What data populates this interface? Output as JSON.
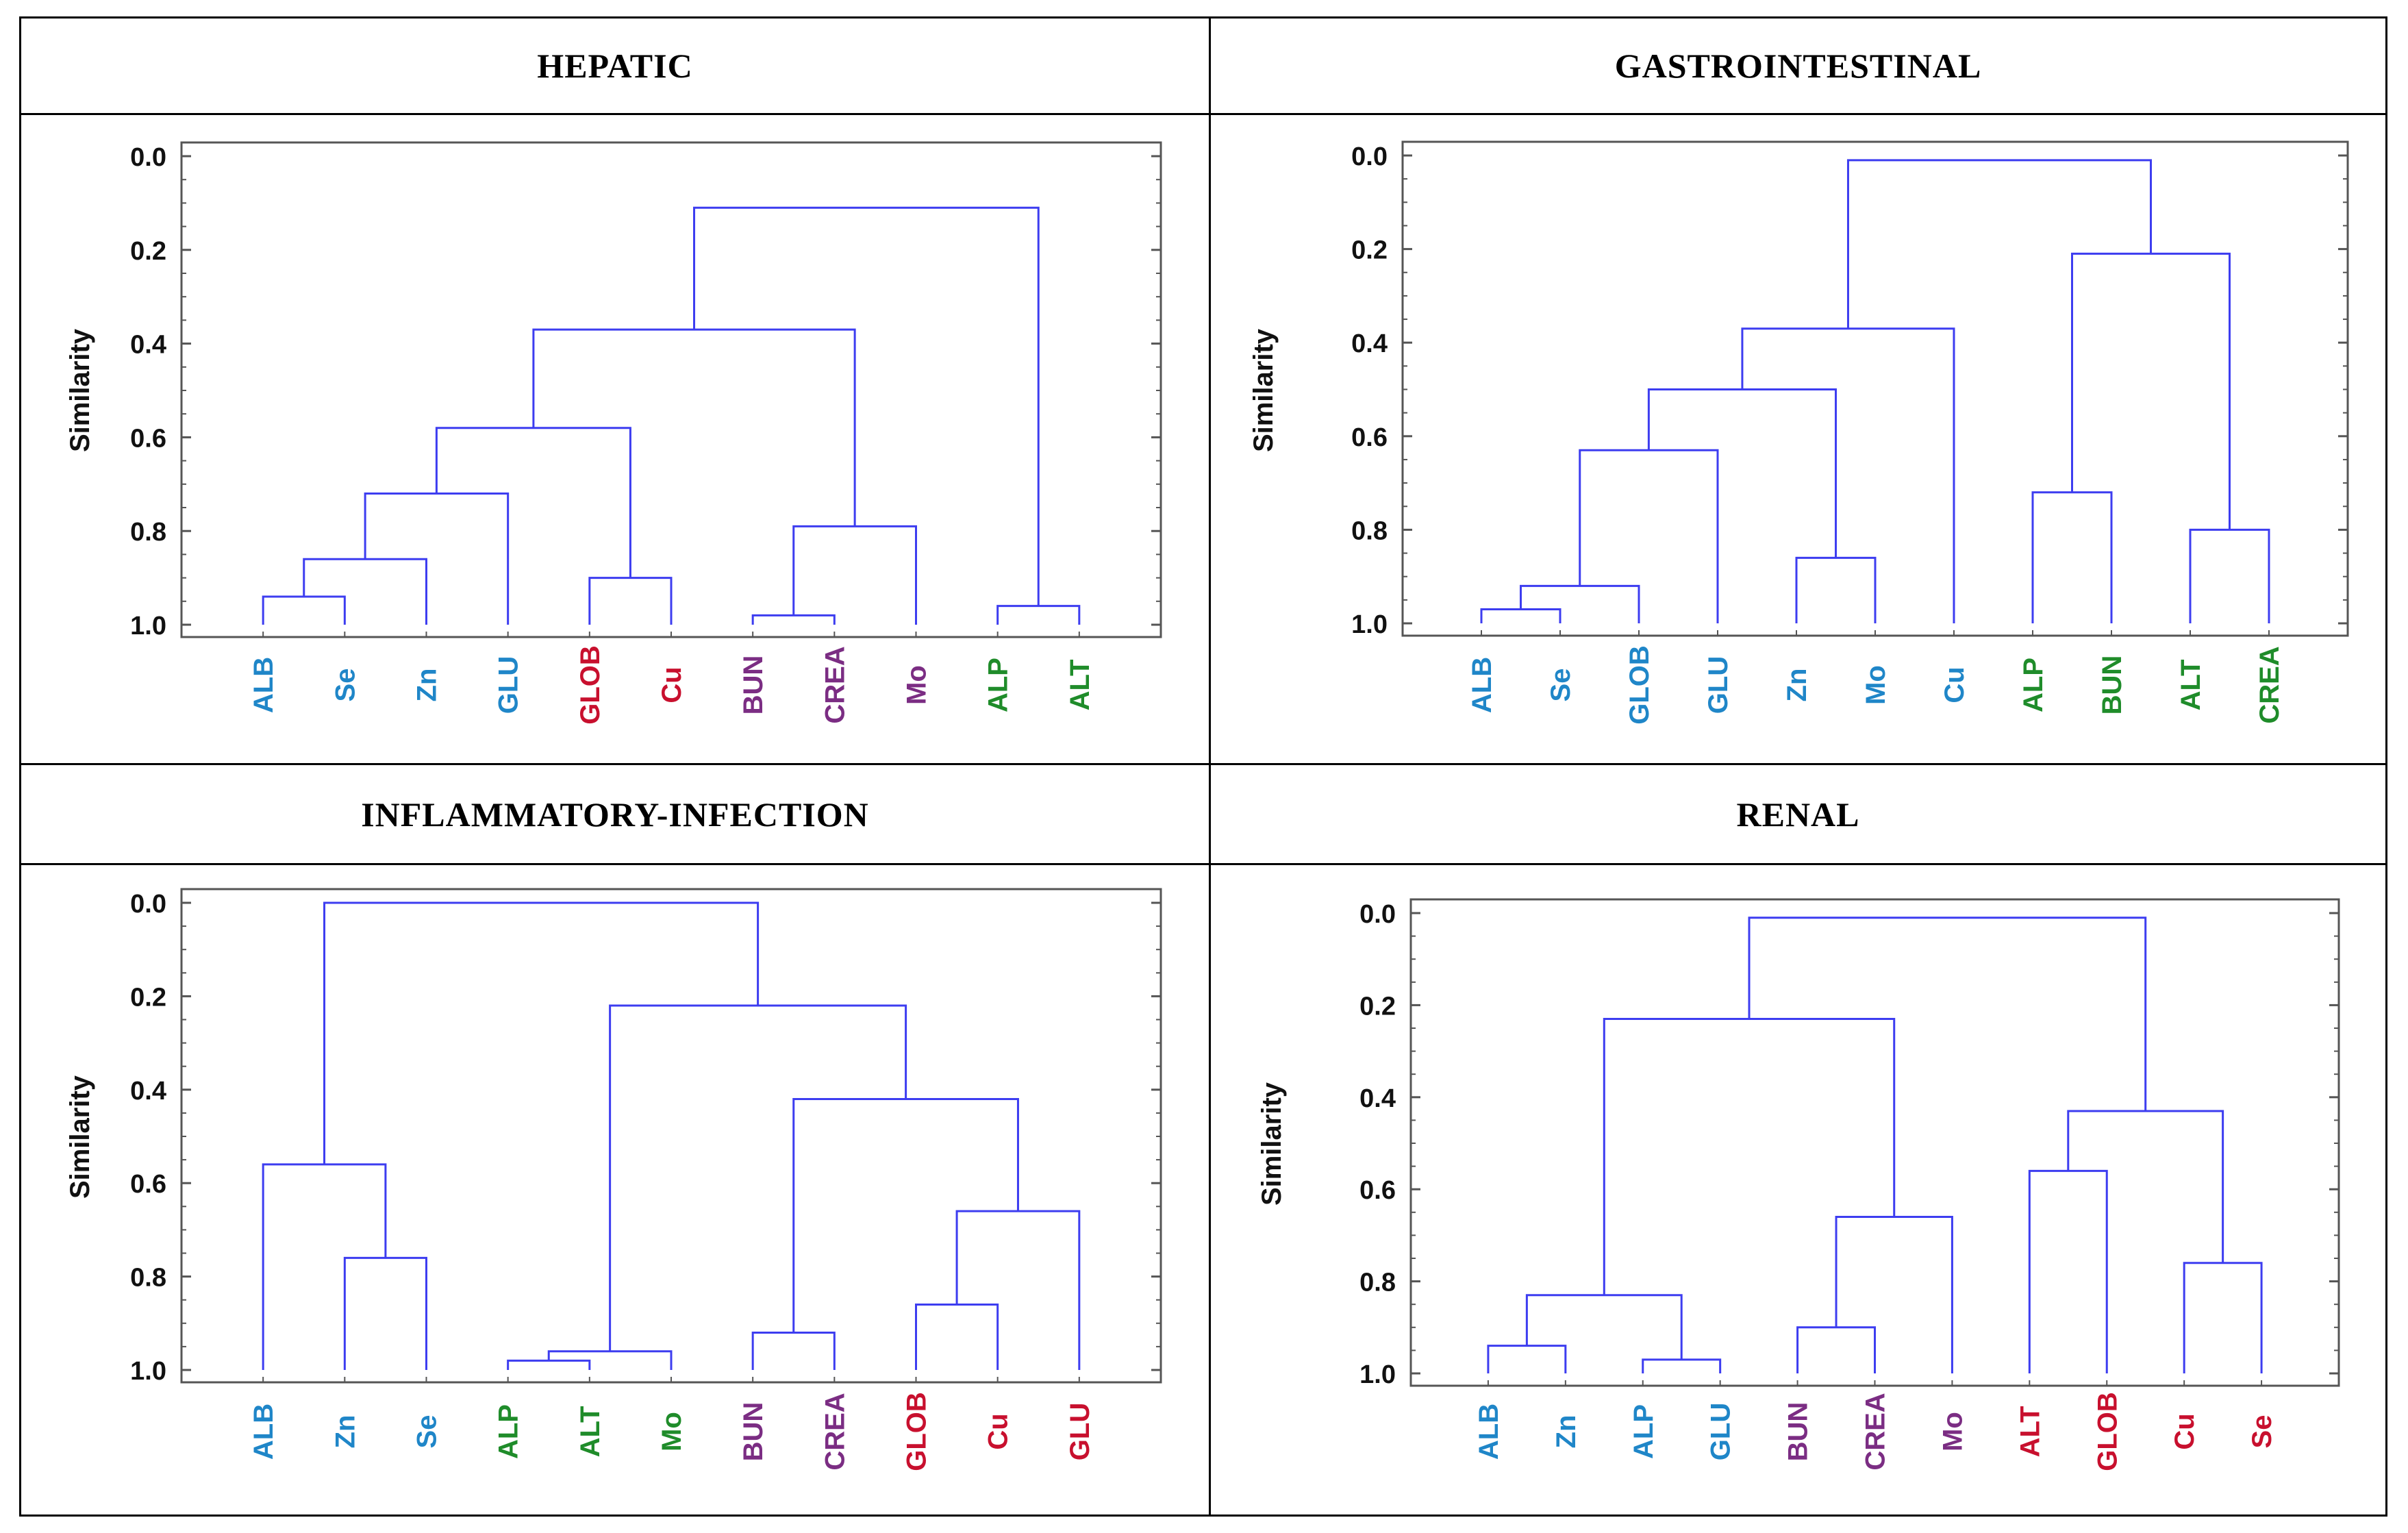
{
  "colors": {
    "branch": "#3d3df0",
    "frame": "#555555",
    "group_blue": "#1f86c8",
    "group_red": "#c8102e",
    "group_purple": "#7b2d83",
    "group_green": "#1f8c2a"
  },
  "panels": [
    {
      "title": "HEPATIC",
      "chart_data": {
        "type": "dendrogram",
        "ylabel": "Similarity",
        "ylim": [
          0.0,
          1.0
        ],
        "yticks": [
          "0.0",
          "0.2",
          "0.4",
          "0.6",
          "0.8",
          "1.0"
        ],
        "leaves": [
          {
            "label": "ALB",
            "group": "group_blue"
          },
          {
            "label": "Se",
            "group": "group_blue"
          },
          {
            "label": "Zn",
            "group": "group_blue"
          },
          {
            "label": "GLU",
            "group": "group_blue"
          },
          {
            "label": "GLOB",
            "group": "group_red"
          },
          {
            "label": "Cu",
            "group": "group_red"
          },
          {
            "label": "BUN",
            "group": "group_purple"
          },
          {
            "label": "CREA",
            "group": "group_purple"
          },
          {
            "label": "Mo",
            "group": "group_purple"
          },
          {
            "label": "ALP",
            "group": "group_green"
          },
          {
            "label": "ALT",
            "group": "group_green"
          }
        ],
        "merges": [
          {
            "a": "L0",
            "b": "L1",
            "sim": 0.94
          },
          {
            "a": "M0",
            "b": "L2",
            "sim": 0.86
          },
          {
            "a": "M1",
            "b": "L3",
            "sim": 0.72
          },
          {
            "a": "L4",
            "b": "L5",
            "sim": 0.9
          },
          {
            "a": "M2",
            "b": "M3",
            "sim": 0.58
          },
          {
            "a": "L6",
            "b": "L7",
            "sim": 0.98
          },
          {
            "a": "M5",
            "b": "L8",
            "sim": 0.79
          },
          {
            "a": "M4",
            "b": "M6",
            "sim": 0.37
          },
          {
            "a": "L9",
            "b": "L10",
            "sim": 0.96
          },
          {
            "a": "M7",
            "b": "M8",
            "sim": 0.11
          }
        ]
      }
    },
    {
      "title": "GASTROINTESTINAL",
      "chart_data": {
        "type": "dendrogram",
        "ylabel": "Similarity",
        "ylim": [
          0.0,
          1.0
        ],
        "yticks": [
          "0.0",
          "0.2",
          "0.4",
          "0.6",
          "0.8",
          "1.0"
        ],
        "leaves": [
          {
            "label": "ALB",
            "group": "group_blue"
          },
          {
            "label": "Se",
            "group": "group_blue"
          },
          {
            "label": "GLOB",
            "group": "group_blue"
          },
          {
            "label": "GLU",
            "group": "group_blue"
          },
          {
            "label": "Zn",
            "group": "group_blue"
          },
          {
            "label": "Mo",
            "group": "group_blue"
          },
          {
            "label": "Cu",
            "group": "group_blue"
          },
          {
            "label": "ALP",
            "group": "group_green"
          },
          {
            "label": "BUN",
            "group": "group_green"
          },
          {
            "label": "ALT",
            "group": "group_green"
          },
          {
            "label": "CREA",
            "group": "group_green"
          }
        ],
        "merges": [
          {
            "a": "L0",
            "b": "L1",
            "sim": 0.97
          },
          {
            "a": "M0",
            "b": "L2",
            "sim": 0.92
          },
          {
            "a": "M1",
            "b": "L3",
            "sim": 0.63
          },
          {
            "a": "L4",
            "b": "L5",
            "sim": 0.86
          },
          {
            "a": "M2",
            "b": "M3",
            "sim": 0.5
          },
          {
            "a": "M4",
            "b": "L6",
            "sim": 0.37
          },
          {
            "a": "L7",
            "b": "L8",
            "sim": 0.72
          },
          {
            "a": "L9",
            "b": "L10",
            "sim": 0.8
          },
          {
            "a": "M6",
            "b": "M7",
            "sim": 0.21
          },
          {
            "a": "M5",
            "b": "M8",
            "sim": 0.01
          }
        ]
      }
    },
    {
      "title": "INFLAMMATORY-INFECTION",
      "chart_data": {
        "type": "dendrogram",
        "ylabel": "Similarity",
        "ylim": [
          0.0,
          1.0
        ],
        "yticks": [
          "0.0",
          "0.2",
          "0.4",
          "0.6",
          "0.8",
          "1.0"
        ],
        "leaves": [
          {
            "label": "ALB",
            "group": "group_blue"
          },
          {
            "label": "Zn",
            "group": "group_blue"
          },
          {
            "label": "Se",
            "group": "group_blue"
          },
          {
            "label": "ALP",
            "group": "group_green"
          },
          {
            "label": "ALT",
            "group": "group_green"
          },
          {
            "label": "Mo",
            "group": "group_green"
          },
          {
            "label": "BUN",
            "group": "group_purple"
          },
          {
            "label": "CREA",
            "group": "group_purple"
          },
          {
            "label": "GLOB",
            "group": "group_red"
          },
          {
            "label": "Cu",
            "group": "group_red"
          },
          {
            "label": "GLU",
            "group": "group_red"
          }
        ],
        "merges": [
          {
            "a": "L1",
            "b": "L2",
            "sim": 0.76
          },
          {
            "a": "L0",
            "b": "M0",
            "sim": 0.56
          },
          {
            "a": "L3",
            "b": "L4",
            "sim": 0.98
          },
          {
            "a": "M2",
            "b": "L5",
            "sim": 0.96
          },
          {
            "a": "L6",
            "b": "L7",
            "sim": 0.92
          },
          {
            "a": "L8",
            "b": "L9",
            "sim": 0.86
          },
          {
            "a": "M5",
            "b": "L10",
            "sim": 0.66
          },
          {
            "a": "M4",
            "b": "M6",
            "sim": 0.42
          },
          {
            "a": "M3",
            "b": "M7",
            "sim": 0.22
          },
          {
            "a": "M1",
            "b": "M8",
            "sim": 0.0
          }
        ]
      }
    },
    {
      "title": "RENAL",
      "chart_data": {
        "type": "dendrogram",
        "ylabel": "Similarity",
        "ylim": [
          0.0,
          1.0
        ],
        "yticks": [
          "0.0",
          "0.2",
          "0.4",
          "0.6",
          "0.8",
          "1.0"
        ],
        "leaves": [
          {
            "label": "ALB",
            "group": "group_blue"
          },
          {
            "label": "Zn",
            "group": "group_blue"
          },
          {
            "label": "ALP",
            "group": "group_blue"
          },
          {
            "label": "GLU",
            "group": "group_blue"
          },
          {
            "label": "BUN",
            "group": "group_purple"
          },
          {
            "label": "CREA",
            "group": "group_purple"
          },
          {
            "label": "Mo",
            "group": "group_purple"
          },
          {
            "label": "ALT",
            "group": "group_red"
          },
          {
            "label": "GLOB",
            "group": "group_red"
          },
          {
            "label": "Cu",
            "group": "group_red"
          },
          {
            "label": "Se",
            "group": "group_red"
          }
        ],
        "merges": [
          {
            "a": "L0",
            "b": "L1",
            "sim": 0.94
          },
          {
            "a": "L2",
            "b": "L3",
            "sim": 0.97
          },
          {
            "a": "M0",
            "b": "M1",
            "sim": 0.83
          },
          {
            "a": "L4",
            "b": "L5",
            "sim": 0.9
          },
          {
            "a": "M3",
            "b": "L6",
            "sim": 0.66
          },
          {
            "a": "M2",
            "b": "M4",
            "sim": 0.23
          },
          {
            "a": "L7",
            "b": "L8",
            "sim": 0.56
          },
          {
            "a": "L9",
            "b": "L10",
            "sim": 0.76
          },
          {
            "a": "M6",
            "b": "M7",
            "sim": 0.43
          },
          {
            "a": "M5",
            "b": "M8",
            "sim": 0.01
          }
        ]
      }
    }
  ]
}
